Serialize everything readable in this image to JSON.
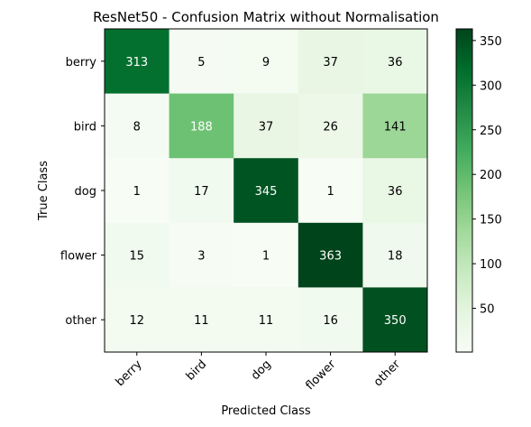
{
  "chart_data": {
    "type": "heatmap",
    "title": "ResNet50 - Confusion Matrix without Normalisation",
    "xlabel": "Predicted Class",
    "ylabel": "True Class",
    "x_categories": [
      "berry",
      "bird",
      "dog",
      "flower",
      "other"
    ],
    "y_categories": [
      "berry",
      "bird",
      "dog",
      "flower",
      "other"
    ],
    "matrix": [
      [
        313,
        5,
        9,
        37,
        36
      ],
      [
        8,
        188,
        37,
        26,
        141
      ],
      [
        1,
        17,
        345,
        1,
        36
      ],
      [
        15,
        3,
        1,
        363,
        18
      ],
      [
        12,
        11,
        11,
        16,
        350
      ]
    ],
    "colormap": "Greens",
    "value_range": [
      1,
      363
    ],
    "colorbar_ticks": [
      50,
      100,
      150,
      200,
      250,
      300,
      350
    ],
    "grid": false
  }
}
